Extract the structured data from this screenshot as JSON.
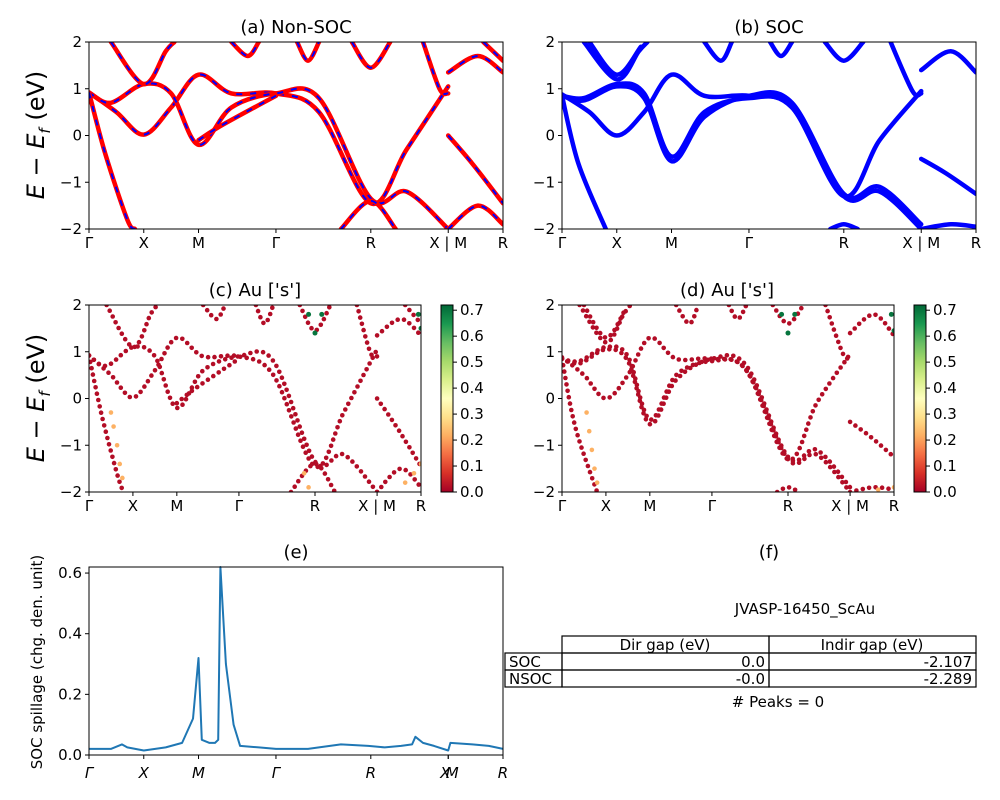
{
  "chart_data": [
    {
      "id": "a",
      "type": "line",
      "title": "(a) Non-SOC",
      "ylabel": "E − E_f (eV)",
      "ylim": [
        -2,
        2
      ],
      "yticks": [
        "2",
        "1",
        "0",
        "−1",
        "−2"
      ],
      "xticklabels": [
        "Γ",
        "X",
        "M",
        "Γ",
        "R",
        "X | M",
        "R"
      ],
      "k_positions": [
        0,
        0.5,
        1.0,
        1.707,
        2.573,
        3.28,
        3.78
      ],
      "series": [
        {
          "color": "#ff0000",
          "overlay_color": "#0000ff",
          "points": [
            [
              0,
              0.92
            ],
            [
              0.25,
              0.5
            ],
            [
              0.5,
              0.02
            ],
            [
              0.75,
              0.6
            ],
            [
              1.0,
              1.3
            ],
            [
              1.3,
              0.9
            ],
            [
              1.707,
              0.9
            ],
            [
              2.1,
              0.5
            ],
            [
              2.573,
              -1.45
            ],
            [
              2.9,
              -0.3
            ],
            [
              3.28,
              1.05
            ]
          ]
        },
        {
          "color": "#ff0000",
          "overlay_color": "#0000ff",
          "points": [
            [
              0,
              0.92
            ],
            [
              0.2,
              0.7
            ],
            [
              0.5,
              1.1
            ],
            [
              0.75,
              0.9
            ],
            [
              1.0,
              -0.2
            ],
            [
              1.3,
              0.6
            ],
            [
              1.707,
              0.9
            ],
            [
              2.1,
              0.8
            ],
            [
              2.573,
              -1.35
            ],
            [
              2.9,
              -1.2
            ],
            [
              3.28,
              -2.0
            ]
          ]
        },
        {
          "color": "#ff0000",
          "overlay_color": "#0000ff",
          "points": [
            [
              0,
              0.92
            ],
            [
              0.15,
              -0.4
            ],
            [
              0.35,
              -1.8
            ],
            [
              0.42,
              -2.0
            ]
          ]
        },
        {
          "color": "#ff0000",
          "overlay_color": "#0000ff",
          "points": [
            [
              0.2,
              2.0
            ],
            [
              0.5,
              1.1
            ],
            [
              0.7,
              1.8
            ],
            [
              0.78,
              2.0
            ]
          ]
        },
        {
          "color": "#ff0000",
          "overlay_color": "#0000ff",
          "points": [
            [
              1.0,
              -0.1
            ],
            [
              1.2,
              0.2
            ],
            [
              1.707,
              0.85
            ]
          ]
        },
        {
          "color": "#ff0000",
          "overlay_color": "#0000ff",
          "points": [
            [
              1.3,
              2.0
            ],
            [
              1.45,
              1.7
            ],
            [
              1.55,
              2.0
            ]
          ]
        },
        {
          "color": "#ff0000",
          "overlay_color": "#0000ff",
          "points": [
            [
              1.9,
              2.0
            ],
            [
              2.0,
              1.6
            ],
            [
              2.1,
              2.0
            ]
          ]
        },
        {
          "color": "#ff0000",
          "overlay_color": "#0000ff",
          "points": [
            [
              2.4,
              2.0
            ],
            [
              2.573,
              1.45
            ],
            [
              2.75,
              2.0
            ]
          ]
        },
        {
          "color": "#ff0000",
          "overlay_color": "#0000ff",
          "points": [
            [
              2.3,
              -2.0
            ],
            [
              2.573,
              -1.4
            ],
            [
              2.8,
              -2.0
            ]
          ]
        },
        {
          "color": "#ff0000",
          "overlay_color": "#0000ff",
          "points": [
            [
              3.05,
              2.0
            ],
            [
              3.2,
              1.0
            ],
            [
              3.28,
              0.9
            ]
          ]
        },
        {
          "color": "#ff0000",
          "overlay_color": "#0000ff",
          "points": [
            [
              3.28,
              0.0
            ],
            [
              3.5,
              -0.6
            ],
            [
              3.78,
              -1.45
            ]
          ]
        },
        {
          "color": "#ff0000",
          "overlay_color": "#0000ff",
          "points": [
            [
              3.28,
              1.35
            ],
            [
              3.55,
              1.7
            ],
            [
              3.78,
              1.35
            ]
          ]
        },
        {
          "color": "#ff0000",
          "overlay_color": "#0000ff",
          "points": [
            [
              3.6,
              2.0
            ],
            [
              3.78,
              1.6
            ]
          ]
        },
        {
          "color": "#ff0000",
          "overlay_color": "#0000ff",
          "points": [
            [
              3.28,
              -2.0
            ],
            [
              3.55,
              -1.5
            ],
            [
              3.78,
              -1.9
            ]
          ]
        }
      ]
    },
    {
      "id": "b",
      "type": "line",
      "title": "(b) SOC",
      "ylim": [
        -2,
        2
      ],
      "yticks": [
        "2",
        "1",
        "0",
        "−1",
        "−2"
      ],
      "xticklabels": [
        "Γ",
        "X",
        "M",
        "Γ",
        "R",
        "X | M",
        "R"
      ],
      "k_positions": [
        0,
        0.5,
        1.0,
        1.707,
        2.573,
        3.28,
        3.78
      ],
      "series": [
        {
          "color": "#0000ff",
          "points": [
            [
              0,
              0.88
            ],
            [
              0.25,
              0.5
            ],
            [
              0.5,
              0.0
            ],
            [
              0.75,
              0.5
            ],
            [
              1.0,
              1.3
            ],
            [
              1.3,
              0.85
            ],
            [
              1.707,
              0.85
            ],
            [
              2.1,
              0.6
            ],
            [
              2.573,
              -1.3
            ],
            [
              2.9,
              -0.1
            ],
            [
              3.28,
              0.95
            ]
          ]
        },
        {
          "color": "#0000ff",
          "points": [
            [
              0,
              0.85
            ],
            [
              0.2,
              0.75
            ],
            [
              0.5,
              1.05
            ],
            [
              0.75,
              0.8
            ],
            [
              1.0,
              -0.55
            ],
            [
              1.3,
              0.4
            ],
            [
              1.707,
              0.85
            ],
            [
              2.1,
              0.7
            ],
            [
              2.573,
              -1.25
            ],
            [
              2.9,
              -1.1
            ],
            [
              3.28,
              -1.9
            ]
          ]
        },
        {
          "color": "#0000ff",
          "points": [
            [
              0,
              0.85
            ],
            [
              0.2,
              0.8
            ],
            [
              0.5,
              1.1
            ],
            [
              0.75,
              0.9
            ],
            [
              1.0,
              -0.45
            ],
            [
              1.3,
              0.5
            ],
            [
              1.707,
              0.8
            ],
            [
              2.1,
              0.6
            ],
            [
              2.573,
              -1.3
            ],
            [
              2.9,
              -1.2
            ],
            [
              3.28,
              -2.0
            ]
          ]
        },
        {
          "color": "#0000ff",
          "points": [
            [
              0,
              0.85
            ],
            [
              0.15,
              -0.6
            ],
            [
              0.4,
              -2.0
            ]
          ]
        },
        {
          "color": "#0000ff",
          "points": [
            [
              0.2,
              2.0
            ],
            [
              0.5,
              1.2
            ],
            [
              0.7,
              1.8
            ],
            [
              0.78,
              2.0
            ]
          ]
        },
        {
          "color": "#0000ff",
          "points": [
            [
              0.25,
              2.0
            ],
            [
              0.5,
              1.3
            ],
            [
              0.72,
              1.9
            ]
          ]
        },
        {
          "color": "#0000ff",
          "points": [
            [
              1.3,
              2.0
            ],
            [
              1.45,
              1.6
            ],
            [
              1.55,
              2.0
            ]
          ]
        },
        {
          "color": "#0000ff",
          "points": [
            [
              1.9,
              2.0
            ],
            [
              2.0,
              1.7
            ],
            [
              2.1,
              2.0
            ]
          ]
        },
        {
          "color": "#0000ff",
          "points": [
            [
              2.4,
              2.0
            ],
            [
              2.573,
              1.6
            ],
            [
              2.75,
              2.0
            ]
          ]
        },
        {
          "color": "#0000ff",
          "points": [
            [
              2.45,
              -2.0
            ],
            [
              2.573,
              -1.9
            ],
            [
              2.7,
              -2.0
            ]
          ]
        },
        {
          "color": "#0000ff",
          "points": [
            [
              3.0,
              2.0
            ],
            [
              3.2,
              0.95
            ],
            [
              3.28,
              0.9
            ]
          ]
        },
        {
          "color": "#0000ff",
          "points": [
            [
              3.28,
              -0.5
            ],
            [
              3.5,
              -0.8
            ],
            [
              3.78,
              -1.25
            ]
          ]
        },
        {
          "color": "#0000ff",
          "points": [
            [
              3.28,
              1.4
            ],
            [
              3.55,
              1.8
            ],
            [
              3.78,
              1.35
            ]
          ]
        },
        {
          "color": "#0000ff",
          "points": [
            [
              3.28,
              -2.0
            ],
            [
              3.55,
              -1.9
            ],
            [
              3.78,
              -1.95
            ]
          ]
        }
      ]
    },
    {
      "id": "c",
      "type": "scatter",
      "title": "(c)  Au ['s']",
      "ylabel": "E − E_f (eV)",
      "ylim": [
        -2,
        2
      ],
      "yticks": [
        "2",
        "1",
        "0",
        "−1",
        "−2"
      ],
      "xticklabels": [
        "Γ",
        "X",
        "M",
        "Γ",
        "R",
        "X | M",
        "R"
      ],
      "k_positions": [
        0,
        0.5,
        1.0,
        1.707,
        2.573,
        3.28,
        3.78
      ],
      "colorbar": {
        "ticks": [
          "0.7",
          "0.6",
          "0.5",
          "0.4",
          "0.3",
          "0.2",
          "0.1",
          "0.0"
        ],
        "range": [
          0.0,
          0.72
        ]
      },
      "high_weight_points": [
        [
          2.5,
          1.8
        ],
        [
          2.573,
          1.4
        ],
        [
          2.65,
          1.8
        ],
        [
          3.78,
          1.5
        ],
        [
          3.75,
          1.8
        ]
      ],
      "mid_weight_points": [
        [
          0.25,
          -0.3
        ],
        [
          0.28,
          -0.6
        ],
        [
          0.32,
          -1.0
        ],
        [
          0.35,
          -1.4
        ],
        [
          0.38,
          -1.7
        ],
        [
          2.45,
          -1.6
        ],
        [
          2.5,
          -1.9
        ],
        [
          3.6,
          -1.8
        ],
        [
          3.7,
          -1.6
        ],
        [
          3.78,
          -1.4
        ]
      ]
    },
    {
      "id": "d",
      "type": "scatter",
      "title": "(d) Au ['s']",
      "ylim": [
        -2,
        2
      ],
      "yticks": [
        "2",
        "1",
        "0",
        "−1",
        "−2"
      ],
      "xticklabels": [
        "Γ",
        "X",
        "M",
        "Γ",
        "R",
        "X | M",
        "R"
      ],
      "k_positions": [
        0,
        0.5,
        1.0,
        1.707,
        2.573,
        3.28,
        3.78
      ],
      "colorbar": {
        "ticks": [
          "0.7",
          "0.6",
          "0.5",
          "0.4",
          "0.3",
          "0.2",
          "0.1",
          "0.0"
        ],
        "range": [
          0.0,
          0.72
        ]
      },
      "high_weight_points": [
        [
          2.5,
          1.8
        ],
        [
          2.573,
          1.4
        ],
        [
          2.65,
          1.8
        ],
        [
          3.78,
          1.45
        ],
        [
          3.75,
          1.8
        ]
      ],
      "mid_weight_points": [
        [
          0.28,
          -0.3
        ],
        [
          0.31,
          -0.7
        ],
        [
          0.34,
          -1.1
        ],
        [
          0.37,
          -1.5
        ],
        [
          0.4,
          -1.8
        ],
        [
          3.6,
          -1.95
        ],
        [
          3.78,
          -1.9
        ]
      ]
    },
    {
      "id": "e",
      "type": "line",
      "title": "(e)",
      "ylabel": "SOC spillage (chg. den. unit)",
      "ylim": [
        0,
        0.62
      ],
      "yticks": [
        "0.6",
        "0.4",
        "0.2",
        "0.0"
      ],
      "xticklabels": [
        "Γ",
        "X",
        "M",
        "Γ",
        "R",
        "X",
        "M",
        "R"
      ],
      "k_positions": [
        0,
        0.5,
        1.0,
        1.707,
        2.573,
        3.28,
        3.28,
        3.78
      ],
      "series": [
        {
          "color": "#1f77b4",
          "points": [
            [
              0,
              0.02
            ],
            [
              0.2,
              0.02
            ],
            [
              0.3,
              0.035
            ],
            [
              0.35,
              0.025
            ],
            [
              0.5,
              0.015
            ],
            [
              0.7,
              0.025
            ],
            [
              0.85,
              0.04
            ],
            [
              0.95,
              0.12
            ],
            [
              1.0,
              0.32
            ],
            [
              1.03,
              0.05
            ],
            [
              1.1,
              0.04
            ],
            [
              1.15,
              0.04
            ],
            [
              1.18,
              0.05
            ],
            [
              1.2,
              0.62
            ],
            [
              1.25,
              0.3
            ],
            [
              1.32,
              0.1
            ],
            [
              1.38,
              0.03
            ],
            [
              1.55,
              0.025
            ],
            [
              1.707,
              0.02
            ],
            [
              2.0,
              0.02
            ],
            [
              2.3,
              0.035
            ],
            [
              2.55,
              0.03
            ],
            [
              2.7,
              0.025
            ],
            [
              2.85,
              0.03
            ],
            [
              2.95,
              0.035
            ],
            [
              2.98,
              0.06
            ],
            [
              3.05,
              0.04
            ],
            [
              3.15,
              0.03
            ],
            [
              3.28,
              0.015
            ],
            [
              3.3,
              0.04
            ],
            [
              3.5,
              0.035
            ],
            [
              3.65,
              0.03
            ],
            [
              3.78,
              0.02
            ]
          ]
        }
      ]
    }
  ],
  "panel_f": {
    "title": "(f)",
    "material": "JVASP-16450_ScAu",
    "table": {
      "headers": [
        "Dir gap (eV)",
        "Indir gap (eV)"
      ],
      "rows": [
        {
          "label": "SOC",
          "dir": "0.0",
          "indir": "-2.107"
        },
        {
          "label": "NSOC",
          "dir": "-0.0",
          "indir": "-2.289"
        }
      ]
    },
    "peaks": "# Peaks = 0"
  }
}
